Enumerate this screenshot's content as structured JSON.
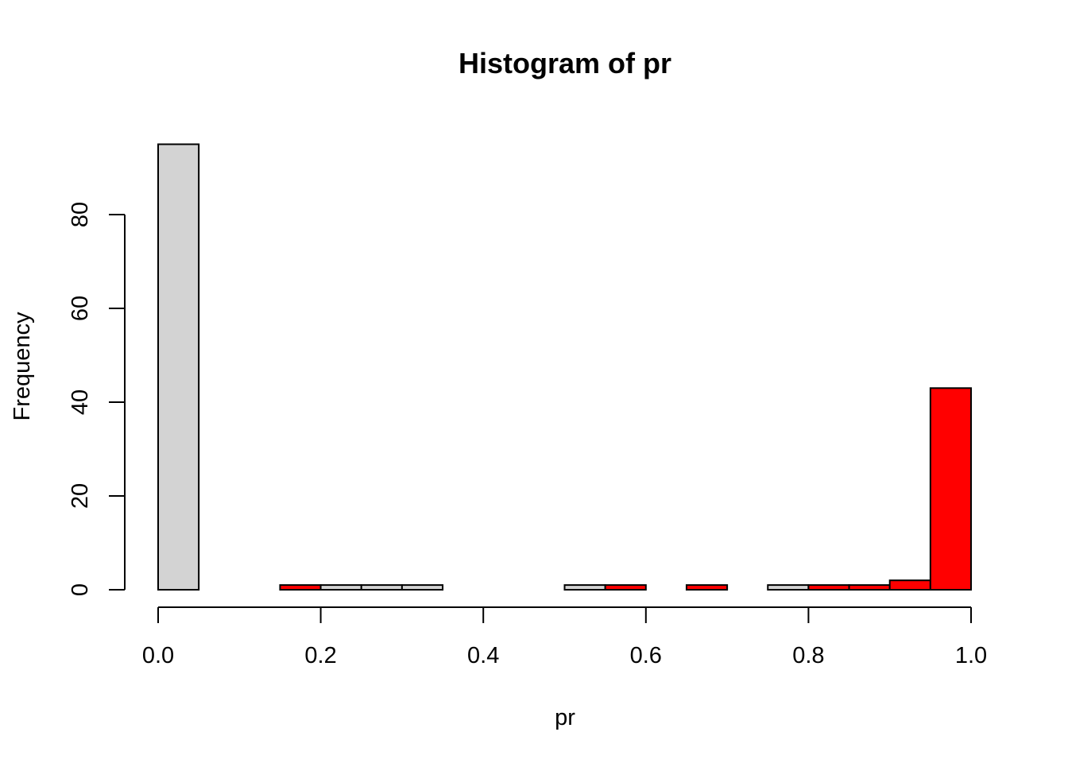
{
  "chart_data": {
    "type": "bar",
    "title": "Histogram of pr",
    "xlabel": "pr",
    "ylabel": "Frequency",
    "xlim": [
      0,
      1
    ],
    "ylim": [
      0,
      95
    ],
    "xticks": [
      "0.0",
      "0.2",
      "0.4",
      "0.6",
      "0.8",
      "1.0"
    ],
    "yticks": [
      "0",
      "20",
      "40",
      "60",
      "80"
    ],
    "grid": false,
    "bin_edges": [
      0,
      0.05,
      0.1,
      0.15,
      0.2,
      0.25,
      0.3,
      0.35,
      0.4,
      0.45,
      0.5,
      0.55,
      0.6,
      0.65,
      0.7,
      0.75,
      0.8,
      0.85,
      0.9,
      0.95,
      1.0
    ],
    "values": [
      95,
      0,
      0,
      1,
      1,
      1,
      1,
      0,
      0,
      0,
      1,
      1,
      0,
      1,
      0,
      1,
      1,
      1,
      2,
      43
    ],
    "bar_colors": [
      "#d3d3d3",
      "#d3d3d3",
      "#d3d3d3",
      "#ff0000",
      "#d3d3d3",
      "#d3d3d3",
      "#d3d3d3",
      "#d3d3d3",
      "#d3d3d3",
      "#d3d3d3",
      "#d3d3d3",
      "#ff0000",
      "#d3d3d3",
      "#ff0000",
      "#d3d3d3",
      "#d3d3d3",
      "#ff0000",
      "#ff0000",
      "#ff0000",
      "#ff0000"
    ]
  }
}
